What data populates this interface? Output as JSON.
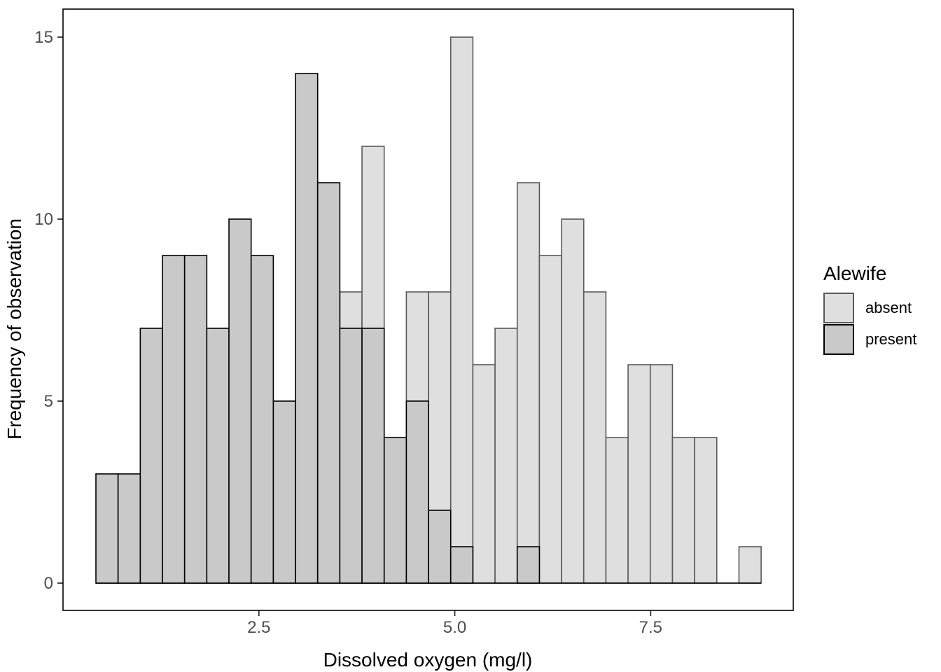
{
  "chart_data": {
    "type": "bar",
    "subtype": "overlaid-histogram",
    "title": "",
    "xlabel": "Dissolved oxygen (mg/l)",
    "ylabel": "Frequency of observation",
    "x_domain": [
      0,
      9.32
    ],
    "y_domain": [
      -0.75,
      15.77
    ],
    "x_ticks": [
      2.5,
      5.0,
      7.5
    ],
    "x_tick_labels": [
      "2.5",
      "5.0",
      "7.5"
    ],
    "y_ticks": [
      0,
      5,
      10,
      15
    ],
    "y_tick_labels": [
      "0",
      "5",
      "10",
      "15"
    ],
    "grid": "off",
    "legend_position": "right",
    "bin_start": 0.42,
    "bin_width": 0.283,
    "series": [
      {
        "name": "absent",
        "counts": [
          0,
          0,
          0,
          0,
          0,
          0,
          0,
          0,
          0,
          0,
          0,
          8,
          12,
          0,
          8,
          8,
          15,
          6,
          7,
          11,
          9,
          10,
          8,
          4,
          6,
          6,
          4,
          4,
          0,
          1
        ]
      },
      {
        "name": "present",
        "counts": [
          3,
          3,
          7,
          9,
          9,
          7,
          10,
          9,
          5,
          14,
          11,
          7,
          7,
          4,
          5,
          2,
          1,
          0,
          0,
          1,
          0,
          0,
          0,
          0,
          0,
          0,
          0,
          0,
          0,
          0
        ]
      }
    ]
  },
  "legend": {
    "title": "Alewife",
    "items": [
      {
        "label": "absent"
      },
      {
        "label": "present"
      }
    ]
  },
  "palette": {
    "absent_fill": "#dfdfdf",
    "absent_stroke": "#595959",
    "present_fill": "#c9c9c9",
    "present_stroke": "#000000",
    "tick_label_color": "#4d4d4d",
    "tick_mark_color": "#333333",
    "panel_border_color": "#000000",
    "axis_title_color": "#000000",
    "background": "#ffffff"
  }
}
